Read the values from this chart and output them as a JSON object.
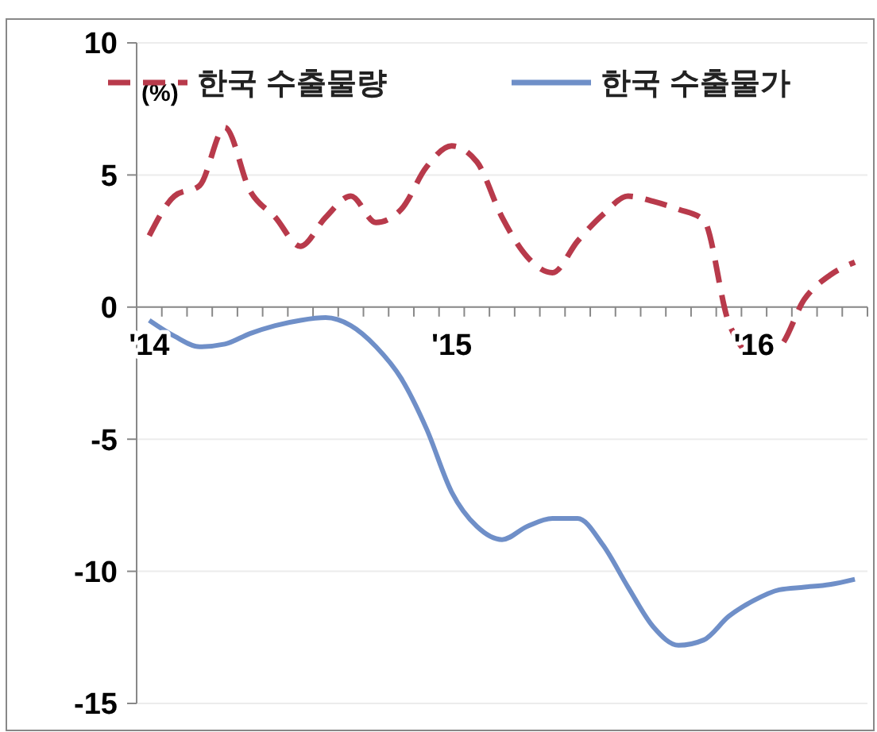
{
  "chart_data": {
    "type": "line",
    "ylabel": "(%)",
    "categories": [
      "'14",
      null,
      null,
      null,
      null,
      null,
      null,
      null,
      null,
      null,
      null,
      null,
      "'15",
      null,
      null,
      null,
      null,
      null,
      null,
      null,
      null,
      null,
      null,
      null,
      "'16",
      null,
      null,
      null,
      null
    ],
    "series": [
      {
        "name": "한국 수출물량",
        "color": "#b83a4b",
        "line_style": "dashed",
        "values": [
          2.7,
          4.2,
          4.6,
          6.8,
          4.4,
          3.4,
          2.3,
          3.4,
          4.2,
          3.2,
          3.7,
          5.3,
          6.1,
          5.5,
          3.4,
          1.9,
          1.3,
          2.5,
          3.5,
          4.2,
          4.0,
          3.7,
          3.3,
          -0.6,
          -1.8,
          -1.5,
          0.3,
          1.2,
          1.7
        ]
      },
      {
        "name": "한국 수출물가",
        "color": "#6f8fc8",
        "line_style": "solid",
        "values": [
          -0.5,
          -1.1,
          -1.5,
          -1.4,
          -1.0,
          -0.7,
          -0.5,
          -0.4,
          -0.7,
          -1.5,
          -2.7,
          -4.6,
          -7.0,
          -8.3,
          -8.8,
          -8.3,
          -8.0,
          -8.0,
          -9.0,
          -10.6,
          -12.1,
          -12.8,
          -12.6,
          -11.7,
          -11.1,
          -10.7,
          -10.6,
          -10.5,
          -10.3
        ]
      }
    ],
    "ylim": [
      -15,
      10
    ],
    "yticks": [
      -15,
      -10,
      -5,
      0,
      5,
      10
    ],
    "grid": "y",
    "legend": "top",
    "marker": "none"
  }
}
